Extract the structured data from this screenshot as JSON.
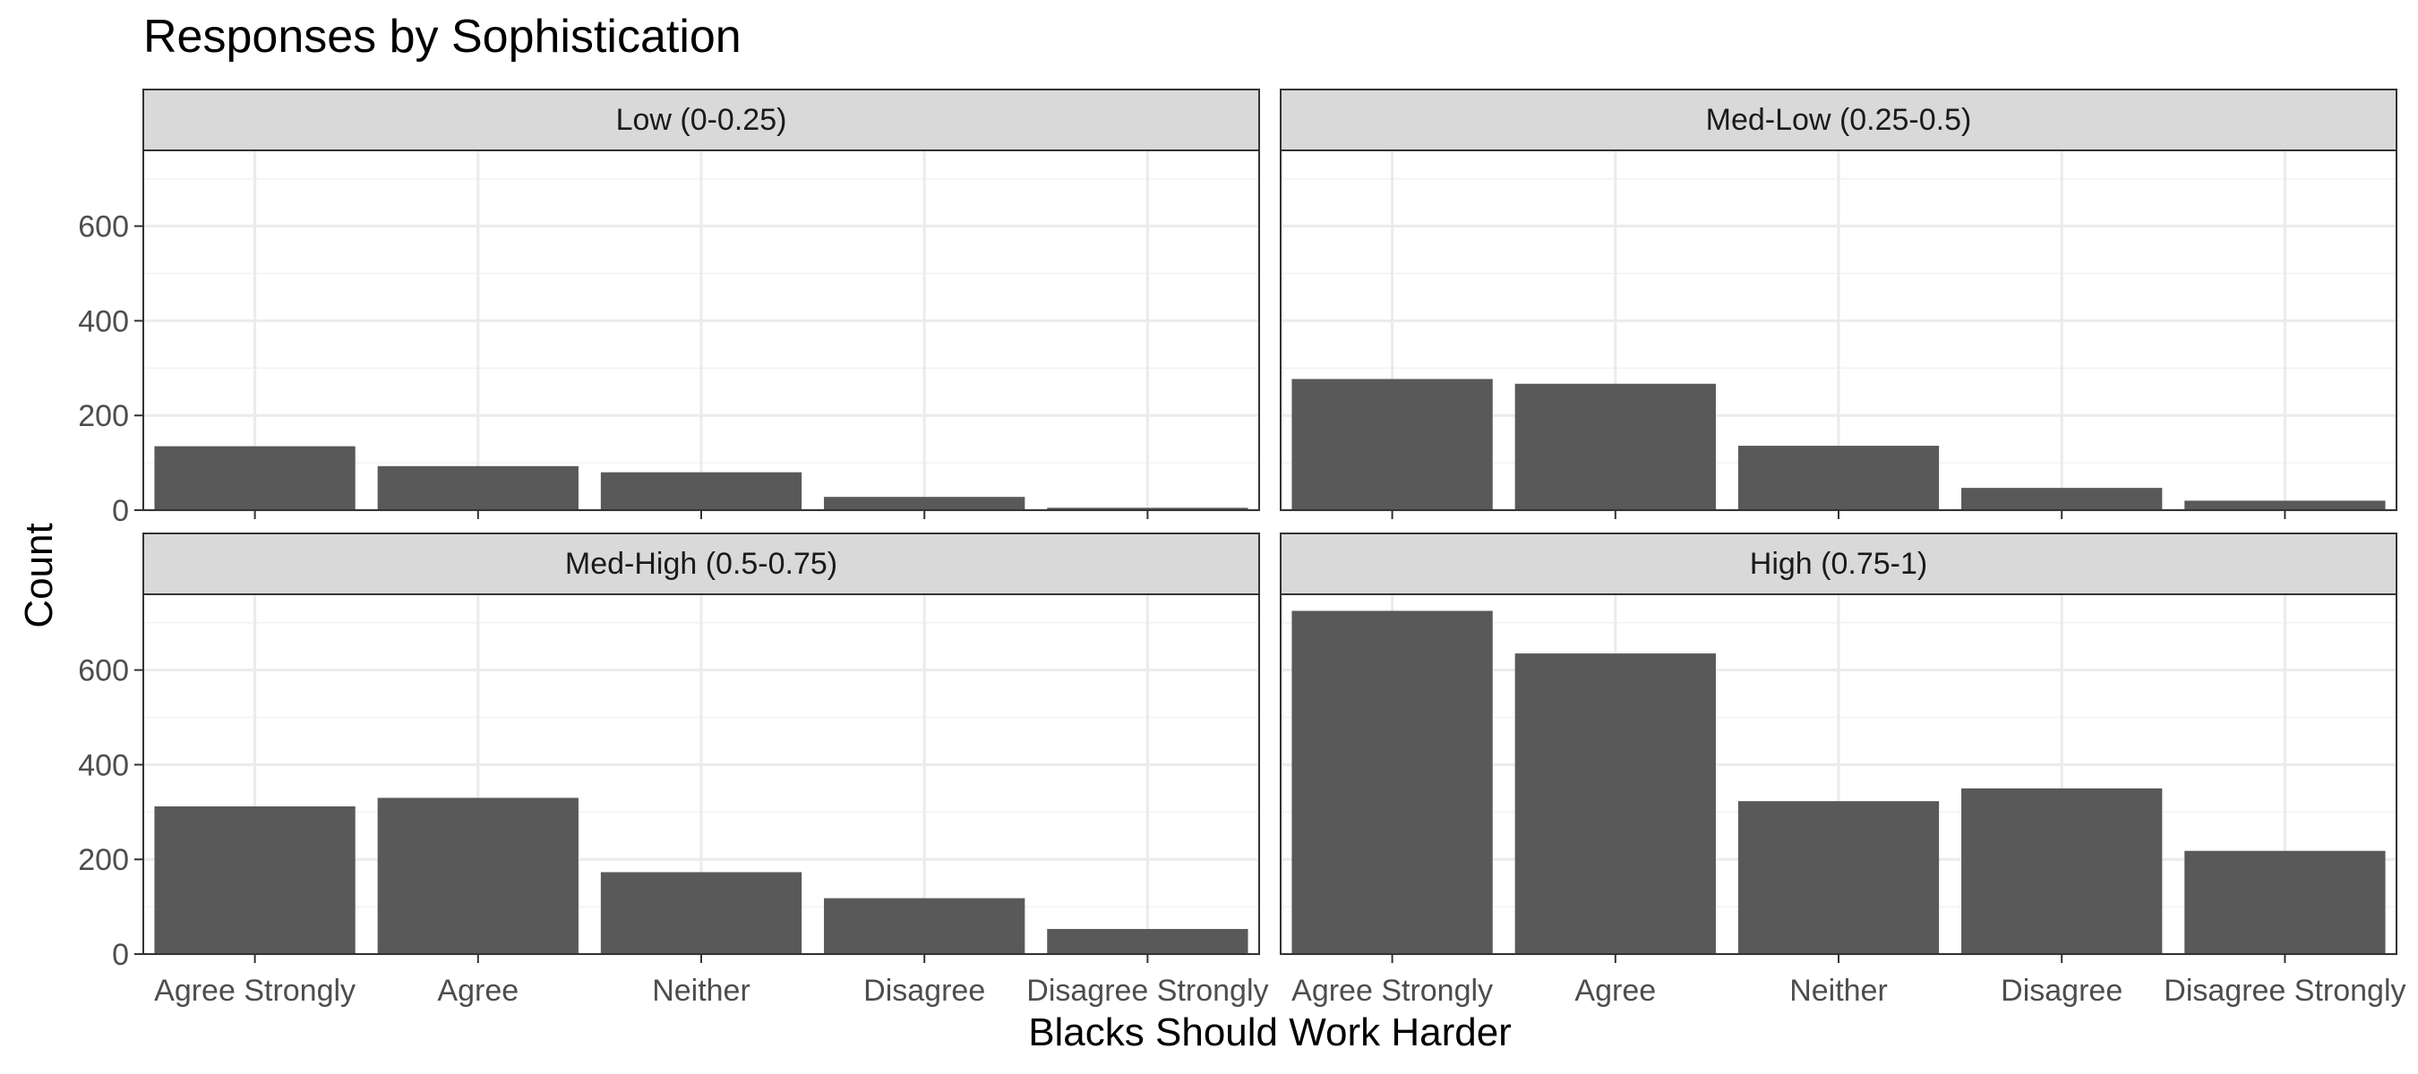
{
  "chart_data": {
    "type": "bar",
    "title": "Responses by Sophistication",
    "xlabel": "Blacks Should Work Harder",
    "ylabel": "Count",
    "ylim": [
      0,
      760
    ],
    "yticks": [
      0,
      200,
      400,
      600
    ],
    "grid": true,
    "legend": "none",
    "bar_color": "#595959",
    "categories": [
      "Agree Strongly",
      "Agree",
      "Neither",
      "Disagree",
      "Disagree Strongly"
    ],
    "facets": [
      {
        "label": "Low (0-0.25)",
        "values": [
          135,
          93,
          80,
          28,
          5
        ]
      },
      {
        "label": "Med-Low (0.25-0.5)",
        "values": [
          277,
          267,
          136,
          47,
          20
        ]
      },
      {
        "label": "Med-High (0.5-0.75)",
        "values": [
          312,
          330,
          173,
          118,
          53
        ]
      },
      {
        "label": "High (0.75-1)",
        "values": [
          725,
          635,
          323,
          350,
          218
        ]
      }
    ]
  }
}
